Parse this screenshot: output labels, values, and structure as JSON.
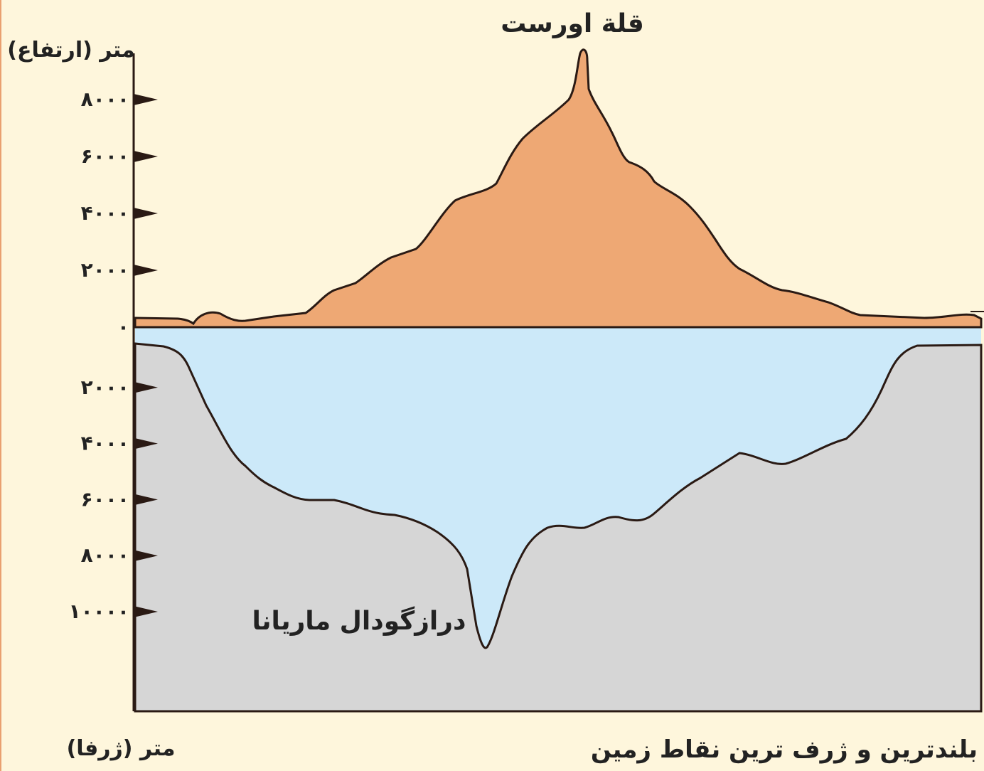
{
  "title": "قلة اورست",
  "trench_label": "درازگودال ماریانا",
  "caption": "بلندترین و ژرف ترین نقاط زمین",
  "height_axis": {
    "label": "متر (ارتفاع)",
    "ticks": [
      {
        "value": 8000,
        "label": "۸۰۰۰"
      },
      {
        "value": 6000,
        "label": "۶۰۰۰"
      },
      {
        "value": 4000,
        "label": "۴۰۰۰"
      },
      {
        "value": 2000,
        "label": "۲۰۰۰"
      },
      {
        "value": 0,
        "label": "۰"
      }
    ]
  },
  "depth_axis": {
    "label": "متر (ژرفا)",
    "ticks": [
      {
        "value": 2000,
        "label": "۲۰۰۰"
      },
      {
        "value": 4000,
        "label": "۴۰۰۰"
      },
      {
        "value": 6000,
        "label": "۶۰۰۰"
      },
      {
        "value": 8000,
        "label": "۸۰۰۰"
      },
      {
        "value": 10000,
        "label": "۱۰۰۰۰"
      }
    ]
  }
}
